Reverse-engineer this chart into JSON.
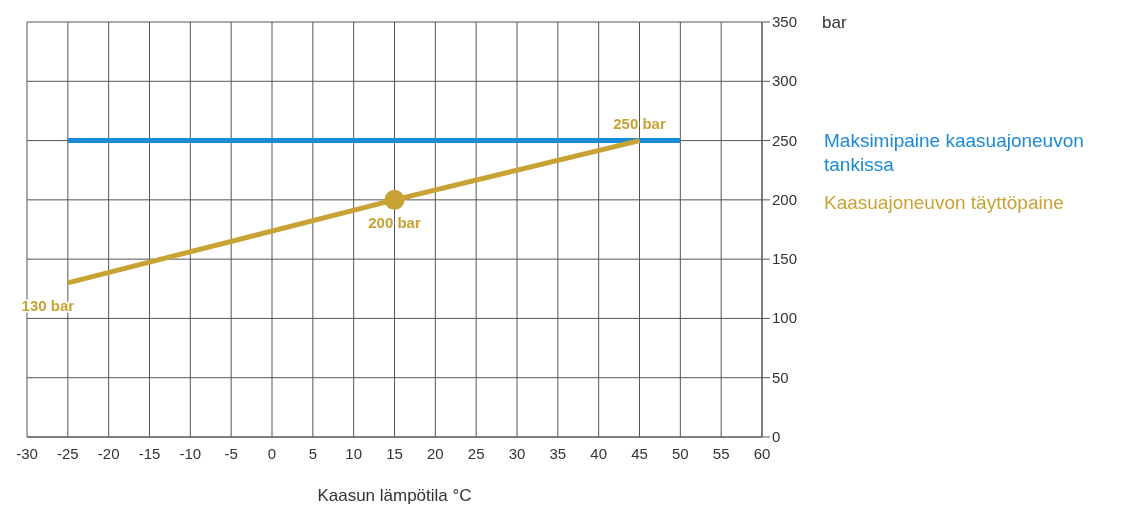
{
  "chart_data": {
    "type": "line",
    "xlabel": "Kaasun lämpötila °C",
    "ylabel": "bar",
    "xlim": [
      -30,
      60
    ],
    "xticks": [
      -30,
      -25,
      -20,
      -15,
      -10,
      -5,
      0,
      5,
      10,
      15,
      20,
      25,
      30,
      35,
      40,
      45,
      50,
      55,
      60
    ],
    "ylim": [
      0,
      350
    ],
    "yticks": [
      0,
      50,
      100,
      150,
      200,
      250,
      300,
      350
    ],
    "grid": true,
    "legend": "right",
    "series": [
      {
        "name": "Maksimipaine kaasuajoneuvon tankissa",
        "color": "#1a8ad4",
        "x": [
          -25,
          50
        ],
        "values": [
          250,
          250
        ]
      },
      {
        "name": "Kaasuajoneuvon täyttöpaine",
        "color": "#c9a234",
        "x": [
          -25,
          15,
          45
        ],
        "values": [
          130,
          200,
          250
        ],
        "value_labels": [
          "130 bar",
          "200 bar",
          "250 bar"
        ]
      },
      {
        "type": "scatter",
        "color": "#c9a234",
        "x": [
          15
        ],
        "values": [
          200
        ],
        "marker": "circle"
      }
    ]
  }
}
